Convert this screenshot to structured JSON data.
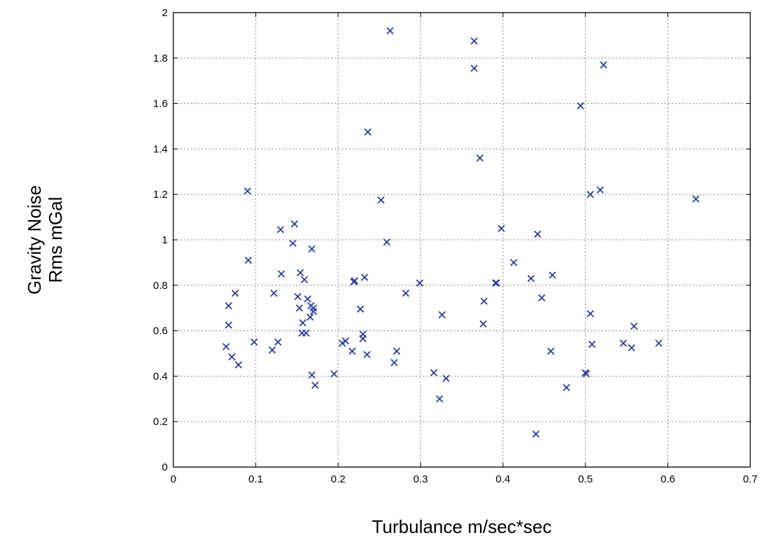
{
  "chart_data": {
    "type": "scatter",
    "xlabel": "Turbulance m/sec*sec",
    "ylabel": [
      "Gravity Noise",
      "Rms mGal"
    ],
    "xlim": [
      0,
      0.7
    ],
    "ylim": [
      0,
      2
    ],
    "xticks": [
      0,
      0.1,
      0.2,
      0.3,
      0.4,
      0.5,
      0.6,
      0.7
    ],
    "xtick_labels": [
      "0",
      "0.1",
      "0.2",
      "0.3",
      "0.4",
      "0.5",
      "0.6",
      "0.7"
    ],
    "yticks": [
      0,
      0.2,
      0.4,
      0.6,
      0.8,
      1,
      1.2,
      1.4,
      1.6,
      1.8,
      2
    ],
    "ytick_labels": [
      "0",
      "0.2",
      "0.4",
      "0.6",
      "0.8",
      "1",
      "1.2",
      "1.4",
      "1.6",
      "1.8",
      "2"
    ],
    "grid": true,
    "marker": "x",
    "color": "#2b3fa0",
    "points": [
      [
        0.064,
        0.53
      ],
      [
        0.067,
        0.71
      ],
      [
        0.067,
        0.625
      ],
      [
        0.071,
        0.485
      ],
      [
        0.075,
        0.765
      ],
      [
        0.079,
        0.45
      ],
      [
        0.09,
        1.215
      ],
      [
        0.091,
        0.91
      ],
      [
        0.098,
        0.55
      ],
      [
        0.12,
        0.515
      ],
      [
        0.122,
        0.765
      ],
      [
        0.127,
        0.55
      ],
      [
        0.13,
        1.045
      ],
      [
        0.131,
        0.85
      ],
      [
        0.145,
        0.985
      ],
      [
        0.147,
        1.07
      ],
      [
        0.151,
        0.75
      ],
      [
        0.153,
        0.7
      ],
      [
        0.154,
        0.855
      ],
      [
        0.156,
        0.59
      ],
      [
        0.157,
        0.635
      ],
      [
        0.159,
        0.825
      ],
      [
        0.161,
        0.59
      ],
      [
        0.163,
        0.74
      ],
      [
        0.166,
        0.66
      ],
      [
        0.167,
        0.71
      ],
      [
        0.168,
        0.96
      ],
      [
        0.168,
        0.405
      ],
      [
        0.17,
        0.685
      ],
      [
        0.17,
        0.7
      ],
      [
        0.172,
        0.36
      ],
      [
        0.195,
        0.41
      ],
      [
        0.205,
        0.545
      ],
      [
        0.209,
        0.555
      ],
      [
        0.217,
        0.51
      ],
      [
        0.219,
        0.815
      ],
      [
        0.22,
        0.82
      ],
      [
        0.227,
        0.695
      ],
      [
        0.23,
        0.565
      ],
      [
        0.23,
        0.585
      ],
      [
        0.232,
        0.835
      ],
      [
        0.235,
        0.495
      ],
      [
        0.236,
        1.475
      ],
      [
        0.252,
        1.175
      ],
      [
        0.259,
        0.99
      ],
      [
        0.263,
        1.92
      ],
      [
        0.268,
        0.46
      ],
      [
        0.271,
        0.51
      ],
      [
        0.282,
        0.765
      ],
      [
        0.299,
        0.81
      ],
      [
        0.316,
        0.415
      ],
      [
        0.323,
        0.3
      ],
      [
        0.326,
        0.67
      ],
      [
        0.331,
        0.39
      ],
      [
        0.365,
        1.875
      ],
      [
        0.365,
        1.755
      ],
      [
        0.372,
        1.36
      ],
      [
        0.376,
        0.63
      ],
      [
        0.377,
        0.73
      ],
      [
        0.391,
        0.81
      ],
      [
        0.392,
        0.81
      ],
      [
        0.398,
        1.05
      ],
      [
        0.413,
        0.9
      ],
      [
        0.434,
        0.83
      ],
      [
        0.44,
        0.145
      ],
      [
        0.442,
        1.025
      ],
      [
        0.447,
        0.745
      ],
      [
        0.458,
        0.51
      ],
      [
        0.46,
        0.845
      ],
      [
        0.477,
        0.35
      ],
      [
        0.494,
        1.59
      ],
      [
        0.5,
        0.415
      ],
      [
        0.501,
        0.41
      ],
      [
        0.506,
        1.2
      ],
      [
        0.506,
        0.675
      ],
      [
        0.508,
        0.54
      ],
      [
        0.518,
        1.22
      ],
      [
        0.522,
        1.77
      ],
      [
        0.546,
        0.545
      ],
      [
        0.556,
        0.525
      ],
      [
        0.559,
        0.62
      ],
      [
        0.589,
        0.545
      ],
      [
        0.634,
        1.18
      ]
    ]
  }
}
